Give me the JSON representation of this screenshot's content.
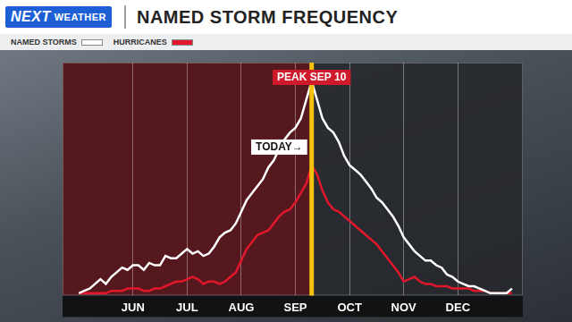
{
  "header": {
    "logo": "NEXT",
    "logo_sub": "WEATHER"
  },
  "chart_data": {
    "type": "line",
    "title": "NAMED STORM FREQUENCY",
    "categories": [
      null,
      null,
      null,
      null,
      null,
      null,
      null,
      null,
      null,
      null,
      null,
      null,
      null,
      "JUN",
      null,
      null,
      null,
      null,
      null,
      null,
      null,
      null,
      null,
      "JUL",
      null,
      null,
      null,
      null,
      null,
      null,
      null,
      null,
      null,
      "AUG",
      null,
      null,
      null,
      null,
      null,
      null,
      null,
      null,
      null,
      "SEP",
      null,
      null,
      null,
      null,
      null,
      null,
      null,
      null,
      null,
      "OCT",
      null,
      null,
      null,
      null,
      null,
      null,
      null,
      null,
      null,
      "NOV",
      null,
      null,
      null,
      null,
      null,
      null,
      null,
      null,
      null,
      "DEC",
      null,
      null,
      null,
      null,
      null,
      null,
      null,
      null,
      null,
      null,
      null,
      null
    ],
    "series": [
      {
        "name": "NAMED STORMS",
        "color": "#ffffff",
        "values": [
          null,
          null,
          null,
          1,
          2,
          3,
          5,
          7,
          5,
          8,
          10,
          12,
          11,
          13,
          13,
          11,
          14,
          13,
          13,
          17,
          16,
          16,
          18,
          20,
          18,
          19,
          17,
          18,
          21,
          25,
          27,
          28,
          31,
          36,
          41,
          44,
          47,
          50,
          55,
          58,
          63,
          67,
          70,
          72,
          76,
          84,
          92,
          84,
          76,
          72,
          70,
          66,
          60,
          56,
          54,
          52,
          49,
          46,
          42,
          40,
          37,
          34,
          30,
          25,
          22,
          19,
          17,
          15,
          15,
          13,
          12,
          9,
          8,
          6,
          5,
          4,
          4,
          3,
          2,
          1,
          1,
          1,
          1,
          3,
          null,
          null
        ]
      },
      {
        "name": "HURRICANES",
        "color": "#e3172b",
        "values": [
          null,
          null,
          null,
          1,
          1,
          1,
          1,
          1,
          1,
          2,
          2,
          2,
          3,
          3,
          3,
          2,
          2,
          3,
          3,
          4,
          5,
          6,
          6,
          7,
          8,
          7,
          5,
          6,
          6,
          5,
          6,
          8,
          10,
          15,
          20,
          23,
          26,
          27,
          28,
          31,
          34,
          36,
          37,
          40,
          44,
          48,
          56,
          52,
          45,
          40,
          37,
          36,
          34,
          32,
          30,
          28,
          26,
          24,
          22,
          19,
          16,
          13,
          10,
          6,
          7,
          8,
          6,
          5,
          5,
          4,
          4,
          4,
          3,
          3,
          3,
          3,
          2,
          2,
          2,
          1,
          1,
          1,
          1,
          1,
          null,
          null
        ]
      }
    ],
    "ylim": [
      0,
      100
    ],
    "grid": true,
    "tick_labels": "x",
    "legend": "top",
    "annotations": [
      {
        "text": "PEAK SEP 10",
        "index": 46
      },
      {
        "text": "TODAY→",
        "index": 46
      }
    ]
  }
}
